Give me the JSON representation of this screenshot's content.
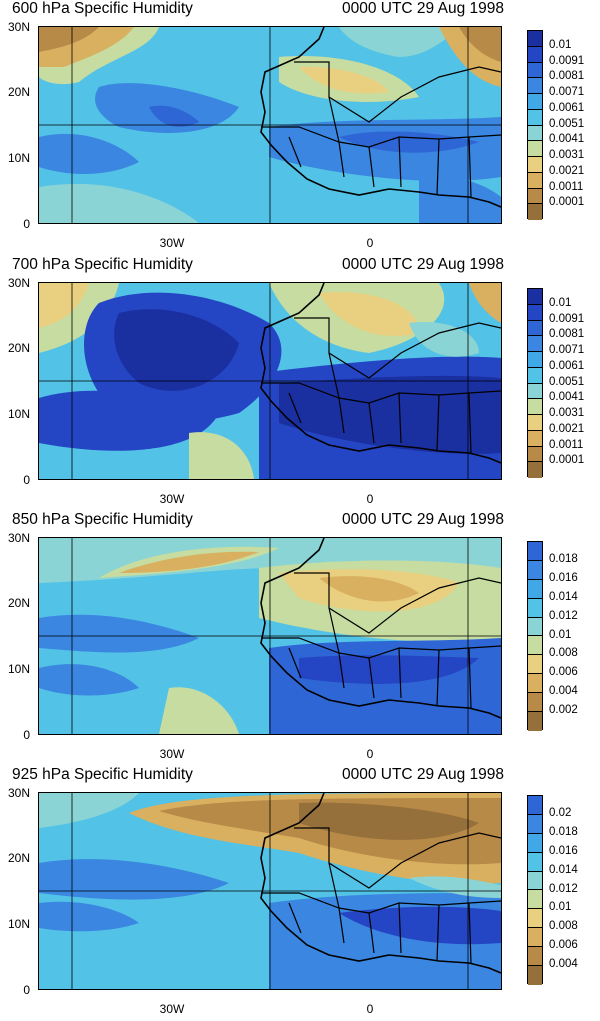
{
  "panels": [
    {
      "title_left": "600 hPa Specific Humidity",
      "title_right": "0000 UTC 29 Aug 1998",
      "y_ticks": [
        "30N",
        "20N",
        "10N",
        "0"
      ],
      "x_ticks": [
        "30W",
        "0"
      ],
      "levels": [
        "0.01",
        "0.0091",
        "0.0081",
        "0.0071",
        "0.0061",
        "0.0051",
        "0.0041",
        "0.0031",
        "0.0021",
        "0.0011",
        "0.0001"
      ]
    },
    {
      "title_left": "700 hPa Specific Humidity",
      "title_right": "0000 UTC 29 Aug 1998",
      "y_ticks": [
        "30N",
        "20N",
        "10N",
        "0"
      ],
      "x_ticks": [
        "30W",
        "0"
      ],
      "levels": [
        "0.01",
        "0.0091",
        "0.0081",
        "0.0071",
        "0.0061",
        "0.0051",
        "0.0041",
        "0.0031",
        "0.0021",
        "0.0011",
        "0.0001"
      ]
    },
    {
      "title_left": "850 hPa Specific Humidity",
      "title_right": "0000 UTC 29 Aug 1998",
      "y_ticks": [
        "30N",
        "20N",
        "10N",
        "0"
      ],
      "x_ticks": [
        "30W",
        "0"
      ],
      "levels": [
        "0.018",
        "0.016",
        "0.014",
        "0.012",
        "0.01",
        "0.008",
        "0.006",
        "0.004",
        "0.002"
      ]
    },
    {
      "title_left": "925 hPa Specific Humidity",
      "title_right": "0000 UTC 29 Aug 1998",
      "y_ticks": [
        "30N",
        "20N",
        "10N",
        "0"
      ],
      "x_ticks": [
        "30W",
        "0"
      ],
      "levels": [
        "0.02",
        "0.018",
        "0.016",
        "0.014",
        "0.012",
        "0.01",
        "0.008",
        "0.006",
        "0.004"
      ]
    }
  ],
  "colors": {
    "scale": [
      "#0c2d6b",
      "#1a2fa0",
      "#2546c4",
      "#2f66d6",
      "#3a86e0",
      "#41a8e8",
      "#52c2e6",
      "#8ad4d6",
      "#c6dca0",
      "#e8d080",
      "#d9b060",
      "#b88a48",
      "#96703a"
    ]
  }
}
